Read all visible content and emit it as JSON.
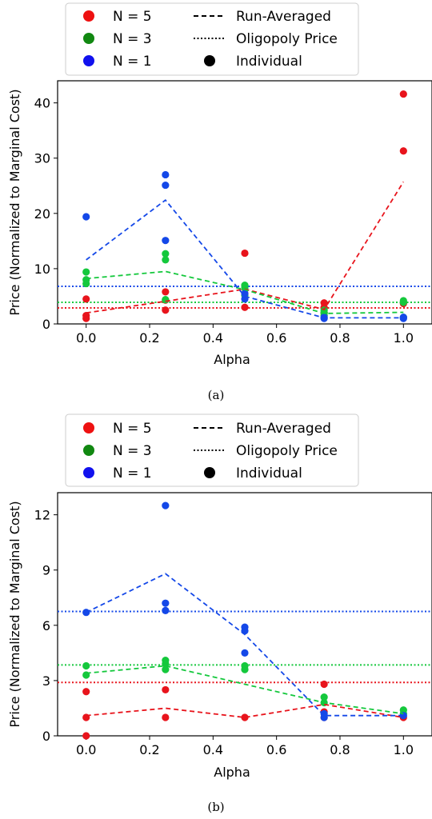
{
  "legend": {
    "n5": "N = 5",
    "n3": "N = 3",
    "n1": "N = 1",
    "run_averaged": "Run-Averaged",
    "oligopoly": "Oligopoly Price",
    "individual": "Individual"
  },
  "colors": {
    "n5": "#e8141c",
    "n3": "#14c83c",
    "n1": "#1448e8",
    "n5_legend": "#ee1111",
    "n3_legend": "#118811",
    "n1_legend": "#1111ee"
  },
  "chart_data": [
    {
      "type": "scatter",
      "caption": "(a)",
      "xlabel": "Alpha",
      "ylabel": "Price (Normalized to Marginal Cost)",
      "xlim": [
        -0.09,
        1.09
      ],
      "ylim": [
        0,
        44
      ],
      "xticks": [
        0.0,
        0.2,
        0.4,
        0.6,
        0.8,
        1.0
      ],
      "xtick_labels": [
        "0.0",
        "0.2",
        "0.4",
        "0.6",
        "0.8",
        "1.0"
      ],
      "yticks": [
        0,
        10,
        20,
        30,
        40
      ],
      "ytick_labels": [
        "0",
        "10",
        "20",
        "30",
        "40"
      ],
      "series": [
        {
          "key": "n5",
          "points": [
            [
              0,
              1.0
            ],
            [
              0,
              1.5
            ],
            [
              0,
              4.5
            ],
            [
              0.25,
              2.5
            ],
            [
              0.25,
              4.3
            ],
            [
              0.25,
              5.8
            ],
            [
              0.5,
              3.0
            ],
            [
              0.5,
              5.5
            ],
            [
              0.5,
              12.8
            ],
            [
              0.75,
              2.0
            ],
            [
              0.75,
              3.0
            ],
            [
              0.75,
              3.8
            ],
            [
              1.0,
              3.7
            ],
            [
              1.0,
              31.3
            ],
            [
              1.0,
              41.6
            ]
          ],
          "avg": [
            [
              0,
              2.0
            ],
            [
              0.25,
              4.1
            ],
            [
              0.5,
              6.3
            ],
            [
              0.75,
              2.6
            ],
            [
              1.0,
              25.7
            ]
          ],
          "oligopoly": 2.9
        },
        {
          "key": "n3",
          "points": [
            [
              0,
              7.3
            ],
            [
              0,
              8.0
            ],
            [
              0,
              9.4
            ],
            [
              0.25,
              11.6
            ],
            [
              0.25,
              12.7
            ],
            [
              0.25,
              4.4
            ],
            [
              0.5,
              5.2
            ],
            [
              0.5,
              6.5
            ],
            [
              0.5,
              7.0
            ],
            [
              0.75,
              1.5
            ],
            [
              0.75,
              2.0
            ],
            [
              0.75,
              2.5
            ],
            [
              1.0,
              1.2
            ],
            [
              1.0,
              3.9
            ],
            [
              1.0,
              4.2
            ]
          ],
          "avg": [
            [
              0,
              8.2
            ],
            [
              0.25,
              9.5
            ],
            [
              0.5,
              6.2
            ],
            [
              0.75,
              1.9
            ],
            [
              1.0,
              2.1
            ]
          ],
          "oligopoly": 3.9
        },
        {
          "key": "n1",
          "points": [
            [
              0,
              19.4
            ],
            [
              0.25,
              15.1
            ],
            [
              0.25,
              25.1
            ],
            [
              0.25,
              27.0
            ],
            [
              0.5,
              4.5
            ],
            [
              0.5,
              5.5
            ],
            [
              0.75,
              1.0
            ],
            [
              0.75,
              1.2
            ],
            [
              1.0,
              1.0
            ],
            [
              1.0,
              1.2
            ]
          ],
          "avg": [
            [
              0,
              11.6
            ],
            [
              0.25,
              22.4
            ],
            [
              0.5,
              5.0
            ],
            [
              0.75,
              1.1
            ],
            [
              1.0,
              1.1
            ]
          ],
          "oligopoly": 6.8
        }
      ]
    },
    {
      "type": "scatter",
      "caption": "(b)",
      "xlabel": "Alpha",
      "ylabel": "Price (Normalized to Marginal Cost)",
      "xlim": [
        -0.09,
        1.09
      ],
      "ylim": [
        0,
        13.2
      ],
      "xticks": [
        0.0,
        0.2,
        0.4,
        0.6,
        0.8,
        1.0
      ],
      "xtick_labels": [
        "0.0",
        "0.2",
        "0.4",
        "0.6",
        "0.8",
        "1.0"
      ],
      "yticks": [
        0,
        3,
        6,
        9,
        12
      ],
      "ytick_labels": [
        "0",
        "3",
        "6",
        "9",
        "12"
      ],
      "series": [
        {
          "key": "n5",
          "points": [
            [
              0,
              0.0
            ],
            [
              0,
              1.0
            ],
            [
              0,
              2.4
            ],
            [
              0.25,
              1.0
            ],
            [
              0.25,
              2.5
            ],
            [
              0.5,
              1.0
            ],
            [
              0.75,
              1.0
            ],
            [
              0.75,
              1.3
            ],
            [
              0.75,
              2.8
            ],
            [
              1.0,
              1.0
            ]
          ],
          "avg": [
            [
              0,
              1.1
            ],
            [
              0.25,
              1.5
            ],
            [
              0.5,
              1.0
            ],
            [
              0.75,
              1.7
            ],
            [
              1.0,
              1.0
            ]
          ],
          "oligopoly": 2.9
        },
        {
          "key": "n3",
          "points": [
            [
              0,
              3.3
            ],
            [
              0,
              3.8
            ],
            [
              0.25,
              3.6
            ],
            [
              0.25,
              3.9
            ],
            [
              0.25,
              4.1
            ],
            [
              0.5,
              3.6
            ],
            [
              0.5,
              3.8
            ],
            [
              0.75,
              1.8
            ],
            [
              0.75,
              2.1
            ],
            [
              1.0,
              1.2
            ],
            [
              1.0,
              1.4
            ]
          ],
          "avg": [
            [
              0,
              3.4
            ],
            [
              0.25,
              3.8
            ],
            [
              0.75,
              1.8
            ],
            [
              1.0,
              1.2
            ]
          ],
          "oligopoly": 3.85
        },
        {
          "key": "n1",
          "points": [
            [
              0,
              6.7
            ],
            [
              0.25,
              6.8
            ],
            [
              0.25,
              7.2
            ],
            [
              0.25,
              12.5
            ],
            [
              0.5,
              4.5
            ],
            [
              0.5,
              5.7
            ],
            [
              0.5,
              5.9
            ],
            [
              0.75,
              1.0
            ],
            [
              0.75,
              1.2
            ],
            [
              1.0,
              1.1
            ]
          ],
          "avg": [
            [
              0,
              6.7
            ],
            [
              0.25,
              8.8
            ],
            [
              0.5,
              5.5
            ],
            [
              0.75,
              1.1
            ],
            [
              1.0,
              1.1
            ]
          ],
          "oligopoly": 6.75
        }
      ]
    }
  ]
}
